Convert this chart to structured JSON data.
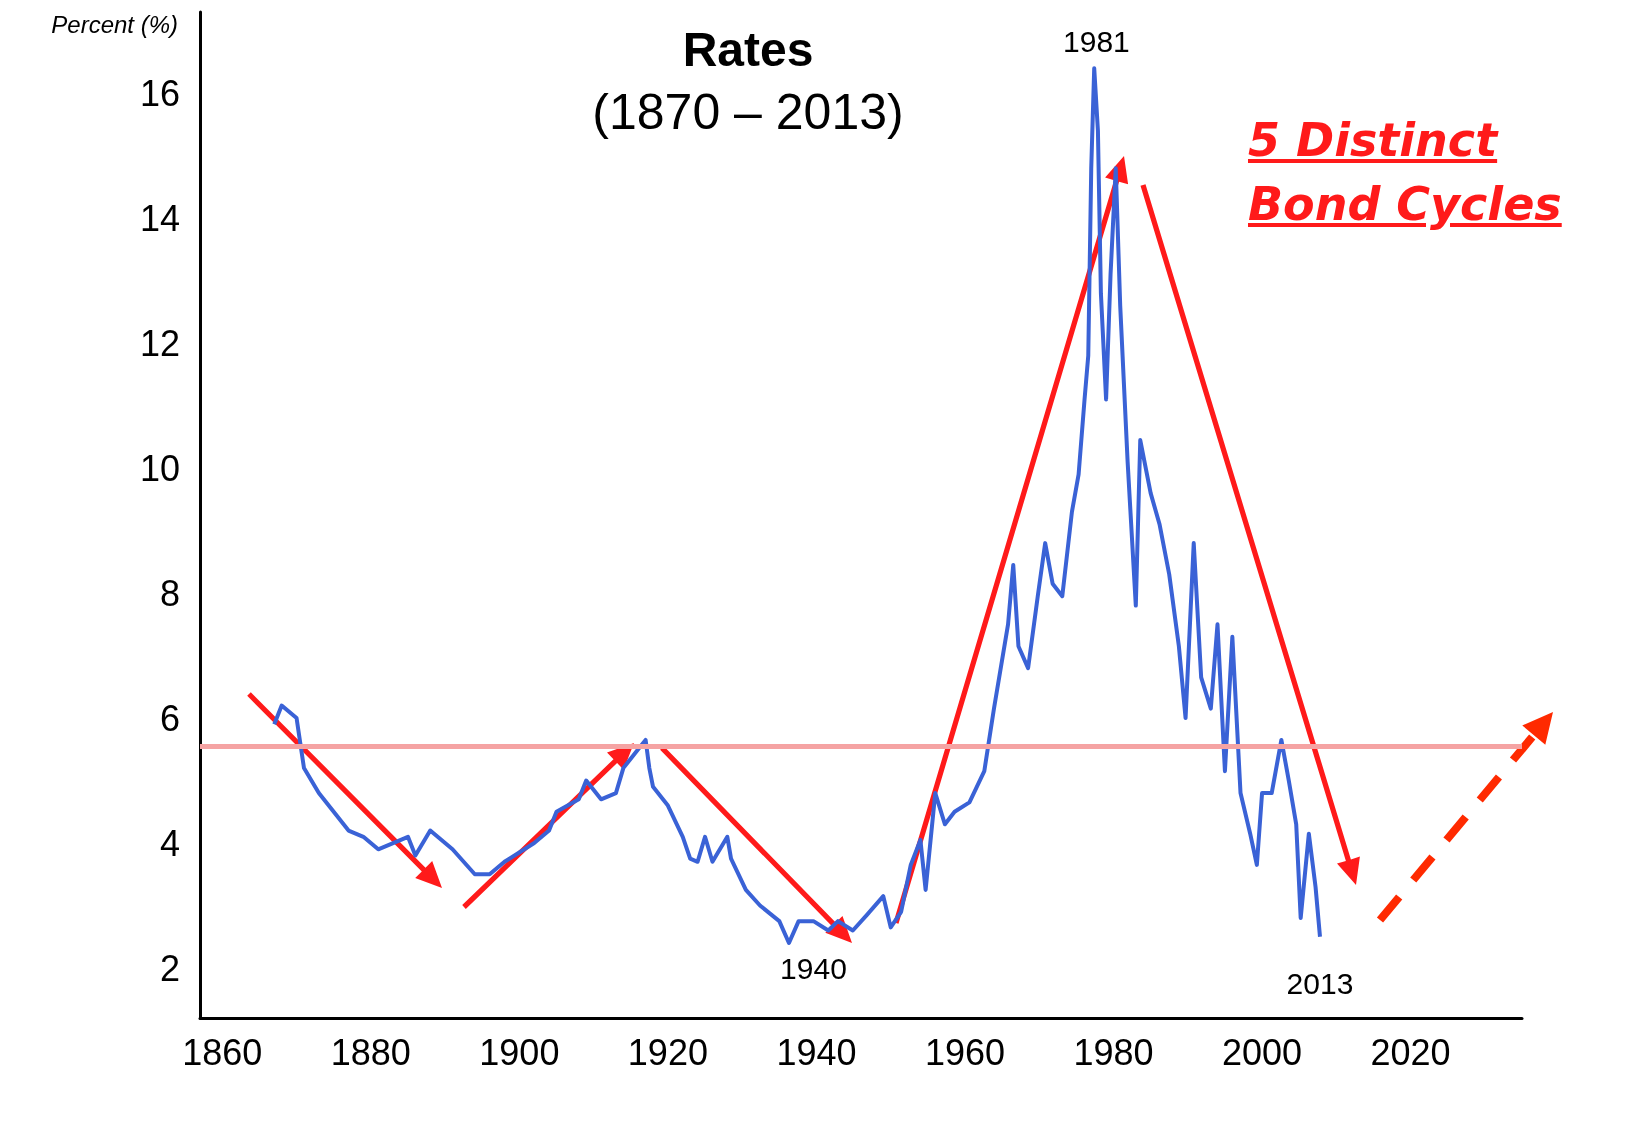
{
  "chart_data": {
    "type": "line",
    "title": "Rates",
    "subtitle": "(1870 – 2013)",
    "ylabel": "Percent (%)",
    "xlim": [
      1857,
      2035
    ],
    "xticks": [
      1860,
      1880,
      1900,
      1920,
      1940,
      1960,
      1980,
      2000,
      2020
    ],
    "ylim": [
      1.2,
      17.3
    ],
    "yticks": [
      2,
      4,
      6,
      8,
      10,
      12,
      14,
      16
    ],
    "grid": false,
    "series": [
      {
        "color": "#3a62d6",
        "x": [
          1867,
          1868,
          1870,
          1871,
          1873,
          1875,
          1877,
          1879,
          1881,
          1883,
          1885,
          1886,
          1888,
          1890,
          1891,
          1894,
          1896,
          1898,
          1902,
          1904,
          1905,
          1908,
          1909,
          1911,
          1913,
          1914,
          1916,
          1917,
          1917.5,
          1918,
          1920,
          1922,
          1923,
          1924,
          1925,
          1926,
          1928,
          1928.5,
          1930.5,
          1932.4,
          1935,
          1936.3,
          1937.6,
          1939.6,
          1941.6,
          1942.9,
          1944.9,
          1946.8,
          1949,
          1950,
          1951.4,
          1952.7,
          1954,
          1954.7,
          1956,
          1957.3,
          1958.6,
          1960.6,
          1962.6,
          1963.9,
          1965.8,
          1966.5,
          1967.2,
          1968.5,
          1969.8,
          1970.8,
          1971.8,
          1973.1,
          1974.4,
          1975.3,
          1976.1,
          1976.6,
          1977,
          1977.4,
          1977.9,
          1978.3,
          1979,
          1979.6,
          1980.3,
          1980.9,
          1981.9,
          1983,
          1983.6,
          1985,
          1986.2,
          1987.5,
          1988.8,
          1989.7,
          1990.8,
          1991.8,
          1993.1,
          1994,
          1995,
          1996,
          1997.1,
          1998.4,
          1999.3,
          2000,
          2001.3,
          2002.6,
          2003.6,
          2004.6,
          2005.2,
          2006.3,
          2007.2,
          2007.8
        ],
        "values": [
          5.9,
          6.2,
          6.0,
          5.2,
          4.8,
          4.5,
          4.2,
          4.1,
          3.9,
          4.0,
          4.1,
          3.8,
          4.2,
          4.0,
          3.9,
          3.5,
          3.5,
          3.7,
          4.0,
          4.2,
          4.5,
          4.7,
          5.0,
          4.7,
          4.8,
          5.2,
          5.5,
          5.65,
          5.2,
          4.9,
          4.6,
          4.1,
          3.75,
          3.7,
          4.1,
          3.7,
          4.1,
          3.75,
          3.25,
          3.0,
          2.75,
          2.4,
          2.75,
          2.75,
          2.6,
          2.75,
          2.6,
          2.85,
          3.15,
          2.65,
          2.9,
          3.65,
          4.05,
          3.25,
          4.8,
          4.3,
          4.5,
          4.65,
          5.15,
          6.15,
          7.5,
          8.45,
          7.15,
          6.8,
          7.95,
          8.8,
          8.15,
          7.95,
          9.3,
          9.9,
          11.1,
          11.8,
          14.8,
          16.4,
          15.4,
          12.8,
          11.1,
          13.1,
          14.8,
          12.6,
          10.1,
          7.8,
          10.45,
          9.6,
          9.1,
          8.3,
          7.15,
          6.0,
          8.8,
          6.65,
          6.15,
          7.5,
          5.15,
          7.3,
          4.8,
          4.15,
          3.65,
          4.8,
          4.8,
          5.65,
          5.0,
          4.3,
          2.8,
          4.15,
          3.3,
          2.5
        ]
      }
    ],
    "ref_lines": [
      {
        "axis": "y",
        "value": 5.55,
        "color": "#f5a3a3"
      }
    ],
    "annotations": [
      {
        "text": "1940",
        "x": 1939.6,
        "y": 2.75
      },
      {
        "text": "1981",
        "x": 1977.7,
        "y": 16.4
      },
      {
        "text": "2013",
        "x": 2007.8,
        "y": 2.5
      },
      "5 Distinct Bond Cycles"
    ]
  }
}
